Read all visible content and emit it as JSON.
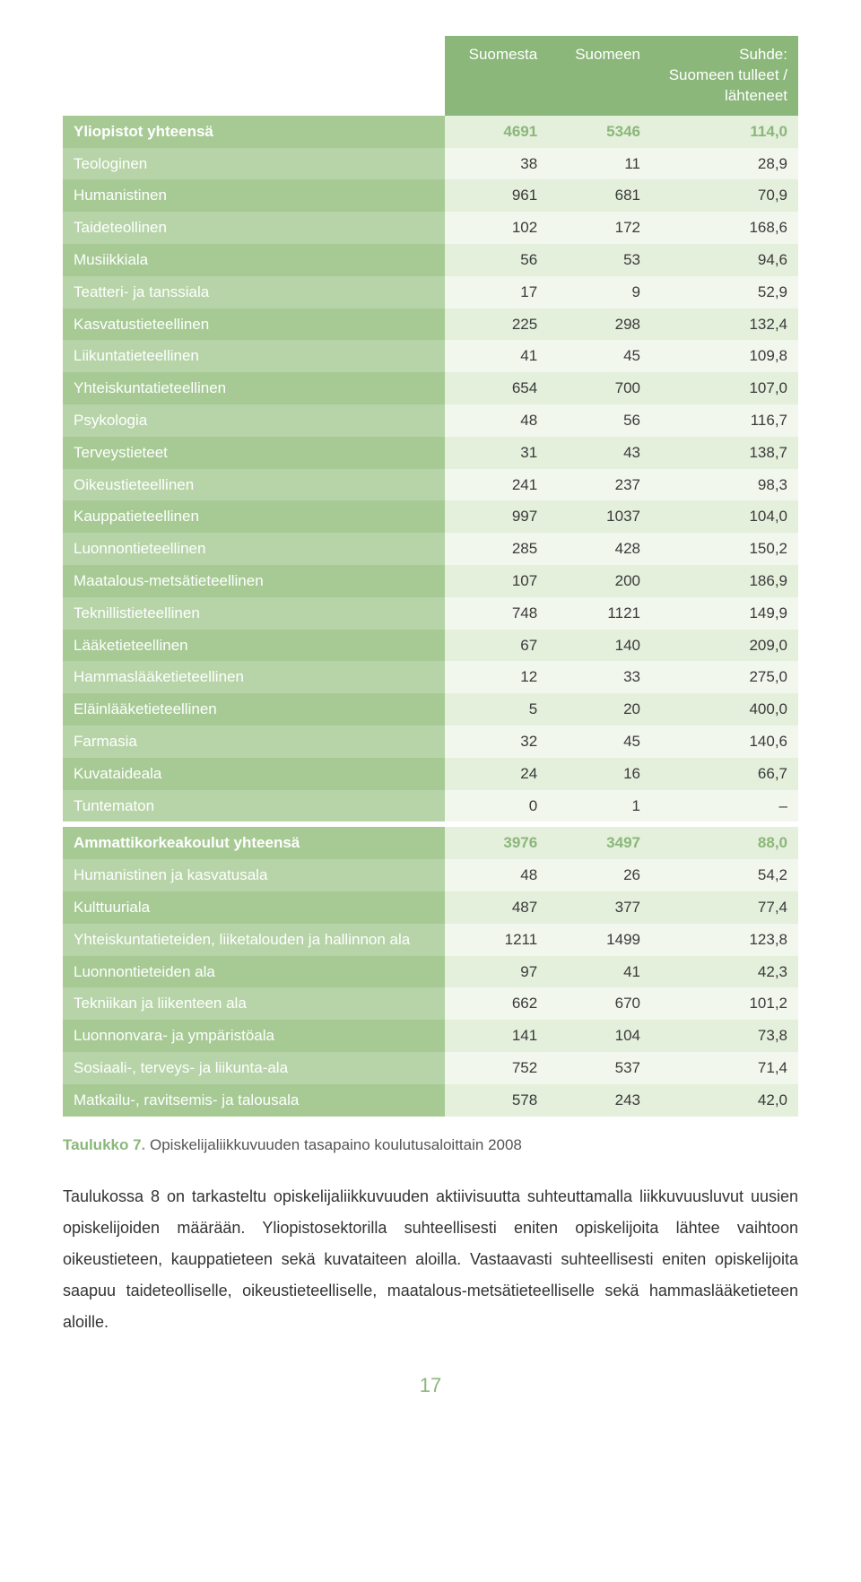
{
  "colors": {
    "header_bg": "#8bb77a",
    "header_text": "#ffffff",
    "label_col_bg_A": "#a7ca95",
    "label_col_bg_B": "#b7d4a8",
    "label_text": "#ffffff",
    "cell_bg_A": "#e4efdc",
    "cell_bg_B": "#f2f7ed",
    "cell_text": "#3a3a3a",
    "total_cell_text": "#8bb77a",
    "caption_lead": "#8bb77a",
    "page_num": "#8bb77a",
    "body_text": "#333333"
  },
  "table": {
    "col_widths": [
      "52%",
      "14%",
      "14%",
      "20%"
    ],
    "header": [
      "",
      "Suomesta",
      "Suomeen",
      "Suhde:\nSuomeen tulleet / lähteneet"
    ],
    "sections": [
      {
        "total": {
          "label": "Yliopistot yhteensä",
          "v": [
            "4691",
            "5346",
            "114,0"
          ]
        },
        "rows": [
          {
            "label": "Teologinen",
            "v": [
              "38",
              "11",
              "28,9"
            ]
          },
          {
            "label": "Humanistinen",
            "v": [
              "961",
              "681",
              "70,9"
            ]
          },
          {
            "label": "Taideteollinen",
            "v": [
              "102",
              "172",
              "168,6"
            ]
          },
          {
            "label": "Musiikkiala",
            "v": [
              "56",
              "53",
              "94,6"
            ]
          },
          {
            "label": "Teatteri- ja tanssiala",
            "v": [
              "17",
              "9",
              "52,9"
            ]
          },
          {
            "label": "Kasvatustieteellinen",
            "v": [
              "225",
              "298",
              "132,4"
            ]
          },
          {
            "label": "Liikuntatieteellinen",
            "v": [
              "41",
              "45",
              "109,8"
            ]
          },
          {
            "label": "Yhteiskuntatieteellinen",
            "v": [
              "654",
              "700",
              "107,0"
            ]
          },
          {
            "label": "Psykologia",
            "v": [
              "48",
              "56",
              "116,7"
            ]
          },
          {
            "label": "Terveystieteet",
            "v": [
              "31",
              "43",
              "138,7"
            ]
          },
          {
            "label": "Oikeustieteellinen",
            "v": [
              "241",
              "237",
              "98,3"
            ]
          },
          {
            "label": "Kauppatieteellinen",
            "v": [
              "997",
              "1037",
              "104,0"
            ]
          },
          {
            "label": "Luonnontieteellinen",
            "v": [
              "285",
              "428",
              "150,2"
            ]
          },
          {
            "label": "Maatalous-metsätieteellinen",
            "v": [
              "107",
              "200",
              "186,9"
            ]
          },
          {
            "label": "Teknillistieteellinen",
            "v": [
              "748",
              "1121",
              "149,9"
            ]
          },
          {
            "label": "Lääketieteellinen",
            "v": [
              "67",
              "140",
              "209,0"
            ]
          },
          {
            "label": "Hammaslääketieteellinen",
            "v": [
              "12",
              "33",
              "275,0"
            ]
          },
          {
            "label": "Eläinlääketieteellinen",
            "v": [
              "5",
              "20",
              "400,0"
            ]
          },
          {
            "label": "Farmasia",
            "v": [
              "32",
              "45",
              "140,6"
            ]
          },
          {
            "label": "Kuvataideala",
            "v": [
              "24",
              "16",
              "66,7"
            ]
          },
          {
            "label": "Tuntematon",
            "v": [
              "0",
              "1",
              "–"
            ]
          }
        ]
      },
      {
        "total": {
          "label": "Ammattikorkeakoulut yhteensä",
          "v": [
            "3976",
            "3497",
            "88,0"
          ]
        },
        "rows": [
          {
            "label": "Humanistinen ja kasvatusala",
            "v": [
              "48",
              "26",
              "54,2"
            ]
          },
          {
            "label": "Kulttuuriala",
            "v": [
              "487",
              "377",
              "77,4"
            ]
          },
          {
            "label": "Yhteiskuntatieteiden, liiketalouden ja hallinnon ala",
            "v": [
              "1211",
              "1499",
              "123,8"
            ]
          },
          {
            "label": "Luonnontieteiden ala",
            "v": [
              "97",
              "41",
              "42,3"
            ]
          },
          {
            "label": "Tekniikan ja liikenteen ala",
            "v": [
              "662",
              "670",
              "101,2"
            ]
          },
          {
            "label": "Luonnonvara- ja ympäristöala",
            "v": [
              "141",
              "104",
              "73,8"
            ]
          },
          {
            "label": "Sosiaali-, terveys- ja liikunta-ala",
            "v": [
              "752",
              "537",
              "71,4"
            ]
          },
          {
            "label": "Matkailu-, ravitsemis- ja talousala",
            "v": [
              "578",
              "243",
              "42,0"
            ]
          }
        ]
      }
    ]
  },
  "caption": {
    "lead": "Taulukko 7.",
    "text": "Opiskelijaliikkuvuuden tasapaino koulutusaloittain 2008"
  },
  "body_paragraph": "Taulukossa 8 on tarkasteltu opiskelijaliikkuvuuden aktiivisuutta suhteuttamalla liikkuvuusluvut uusien opiskelijoiden määrään. Yliopistosektorilla suhteellisesti eniten opiskelijoita lähtee vaihtoon oikeustieteen, kauppatieteen sekä kuvataiteen aloilla. Vastaavasti suhteellisesti eniten opiskelijoita saapuu taideteolliselle, oikeustieteelliselle, maatalous-metsätieteelliselle sekä hammaslääketieteen aloille.",
  "page_number": "17"
}
